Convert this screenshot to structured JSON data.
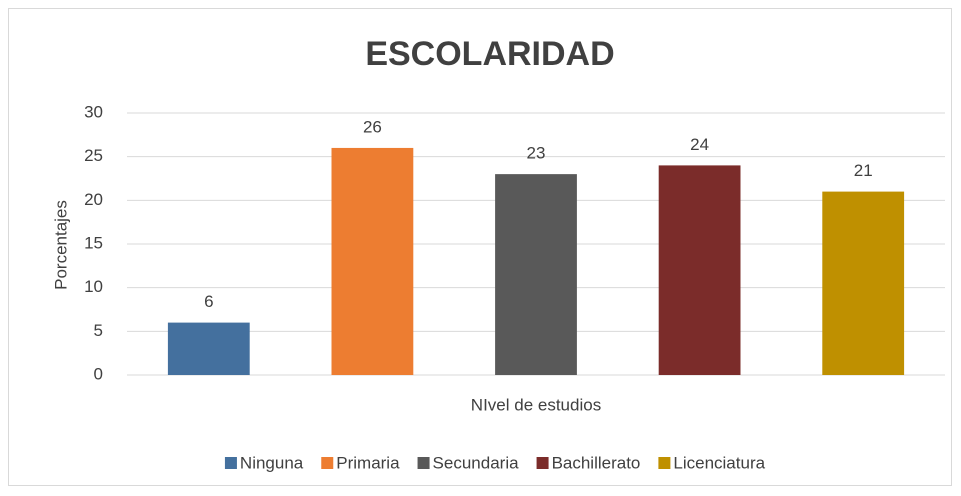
{
  "chart_data": {
    "type": "bar",
    "title": "ESCOLARIDAD",
    "x_label": "NIvel de estudios",
    "y_label": "Porcentajes",
    "categories": [
      "Ninguna",
      "Primaria",
      "Secundaria",
      "Bachillerato",
      "Licenciatura"
    ],
    "values": [
      6,
      26,
      23,
      24,
      21
    ],
    "colors": [
      "#44709e",
      "#ed7d31",
      "#595959",
      "#7b2c2a",
      "#bf9000"
    ],
    "ylim": [
      0,
      30
    ],
    "yticks": [
      0,
      5,
      10,
      15,
      20,
      25,
      30
    ],
    "grid": true,
    "legend": "bottom"
  }
}
